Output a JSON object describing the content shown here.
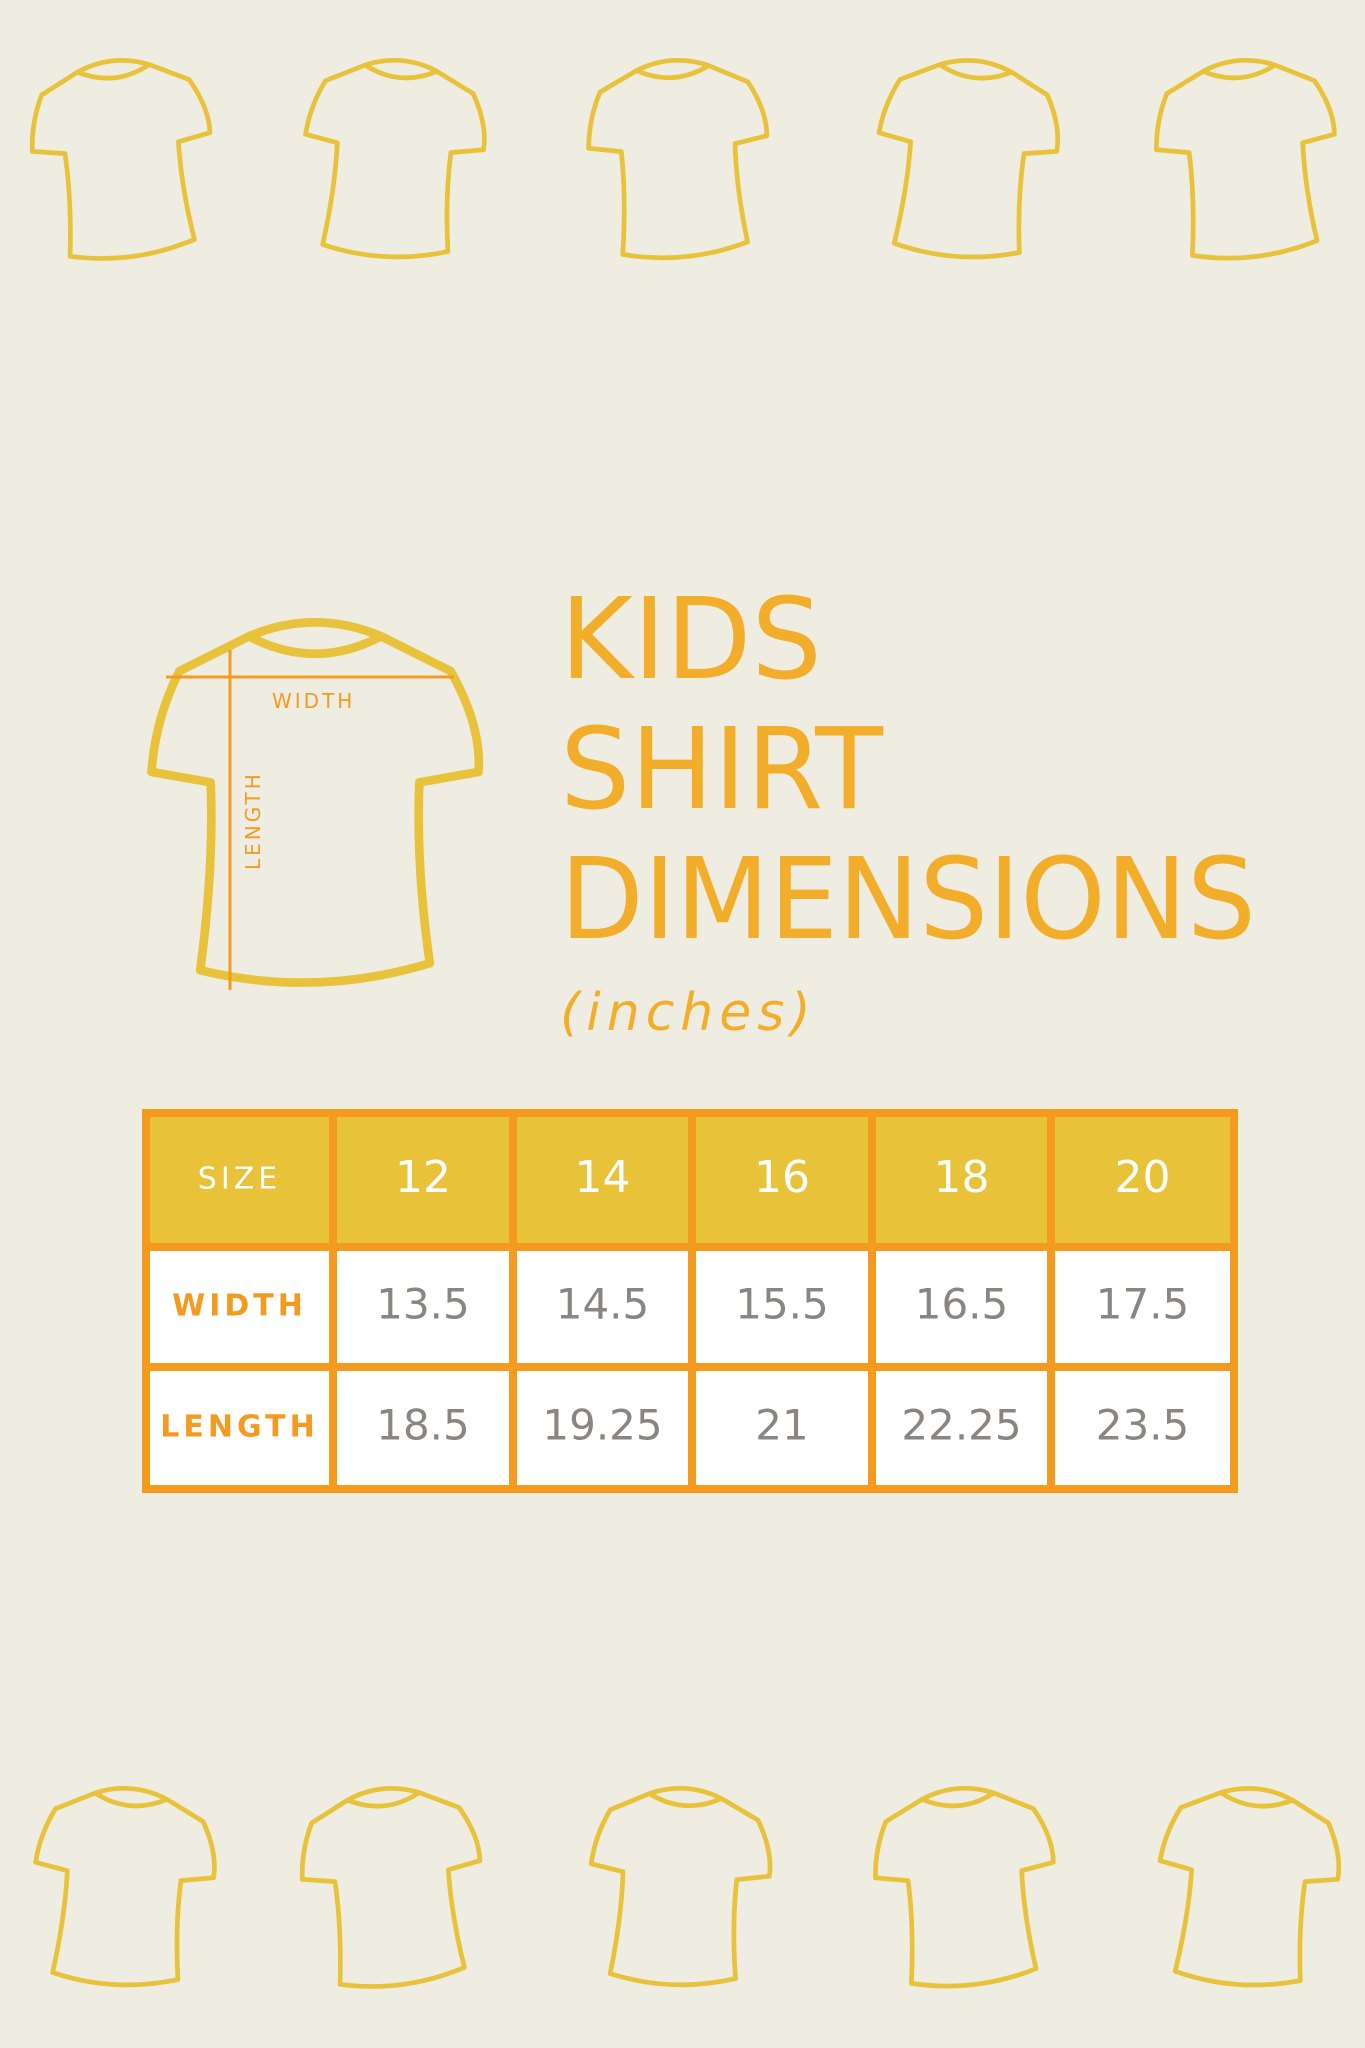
{
  "title": {
    "lines": [
      "KIDS",
      "SHIRT",
      "DIMENSIONS"
    ],
    "unit": "(inches)"
  },
  "diagram": {
    "width_label": "WIDTH",
    "length_label": "LENGTH"
  },
  "table": {
    "header": [
      "SIZE",
      "12",
      "14",
      "16",
      "18",
      "20"
    ],
    "rows": [
      [
        "WIDTH",
        "13.5",
        "14.5",
        "15.5",
        "16.5",
        "17.5"
      ],
      [
        "LENGTH",
        "18.5",
        "19.25",
        "21",
        "22.25",
        "23.5"
      ]
    ]
  }
}
